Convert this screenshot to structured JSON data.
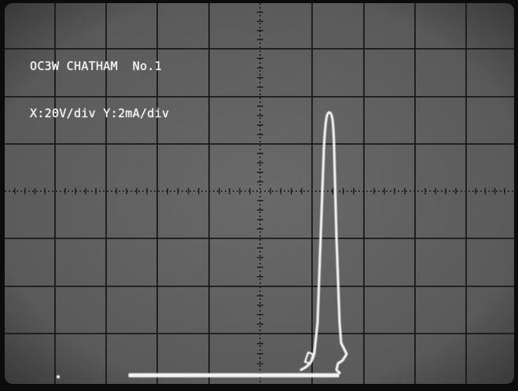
{
  "scope_screen": {
    "title": "OC3W CHATHAM  No.1",
    "scale": "X:20V/div Y:2mA/div"
  },
  "colors": {
    "screen": "#5e5e5e",
    "graticule": "#1a1a1a",
    "trace": "#f2f2f2",
    "bezel": "#0c0c0c"
  },
  "graticule": {
    "columns": 10,
    "rows": 8,
    "minor_ticks_per_division": 5
  }
}
